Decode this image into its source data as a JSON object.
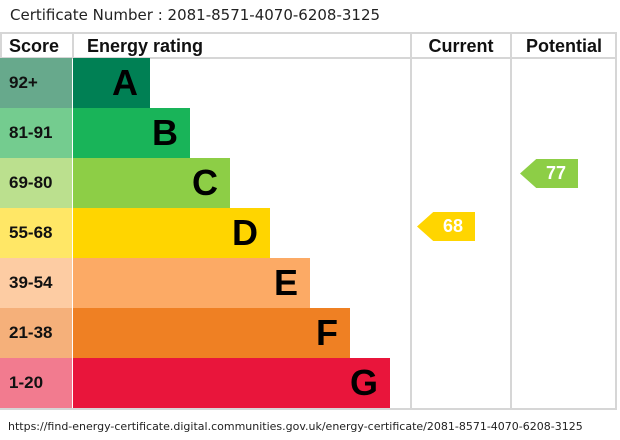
{
  "title": "Certificate Number : 2081-8571-4070-6208-3125",
  "chart_data": {
    "type": "bar",
    "headers": {
      "score": "Score",
      "rating": "Energy rating",
      "current": "Current",
      "potential": "Potential"
    },
    "bands": [
      {
        "score": "92+",
        "letter": "A",
        "color": "#008054",
        "tint": "#67a98c"
      },
      {
        "score": "81-91",
        "letter": "B",
        "color": "#19b459",
        "tint": "#74cc8f"
      },
      {
        "score": "69-80",
        "letter": "C",
        "color": "#8dce46",
        "tint": "#bbe08e"
      },
      {
        "score": "55-68",
        "letter": "D",
        "color": "#ffd500",
        "tint": "#ffe766"
      },
      {
        "score": "39-54",
        "letter": "E",
        "color": "#fcaa65",
        "tint": "#fdcca3"
      },
      {
        "score": "21-38",
        "letter": "F",
        "color": "#ef8023",
        "tint": "#f5b07a"
      },
      {
        "score": "1-20",
        "letter": "G",
        "color": "#e9153b",
        "tint": "#f27b8f"
      }
    ],
    "current": {
      "value": "68",
      "band": "D",
      "color": "#ffd500"
    },
    "potential": {
      "value": "77",
      "band": "C",
      "color": "#8dce46"
    }
  },
  "url": "https://find-energy-certificate.digital.communities.gov.uk/energy-certificate/2081-8571-4070-6208-3125"
}
